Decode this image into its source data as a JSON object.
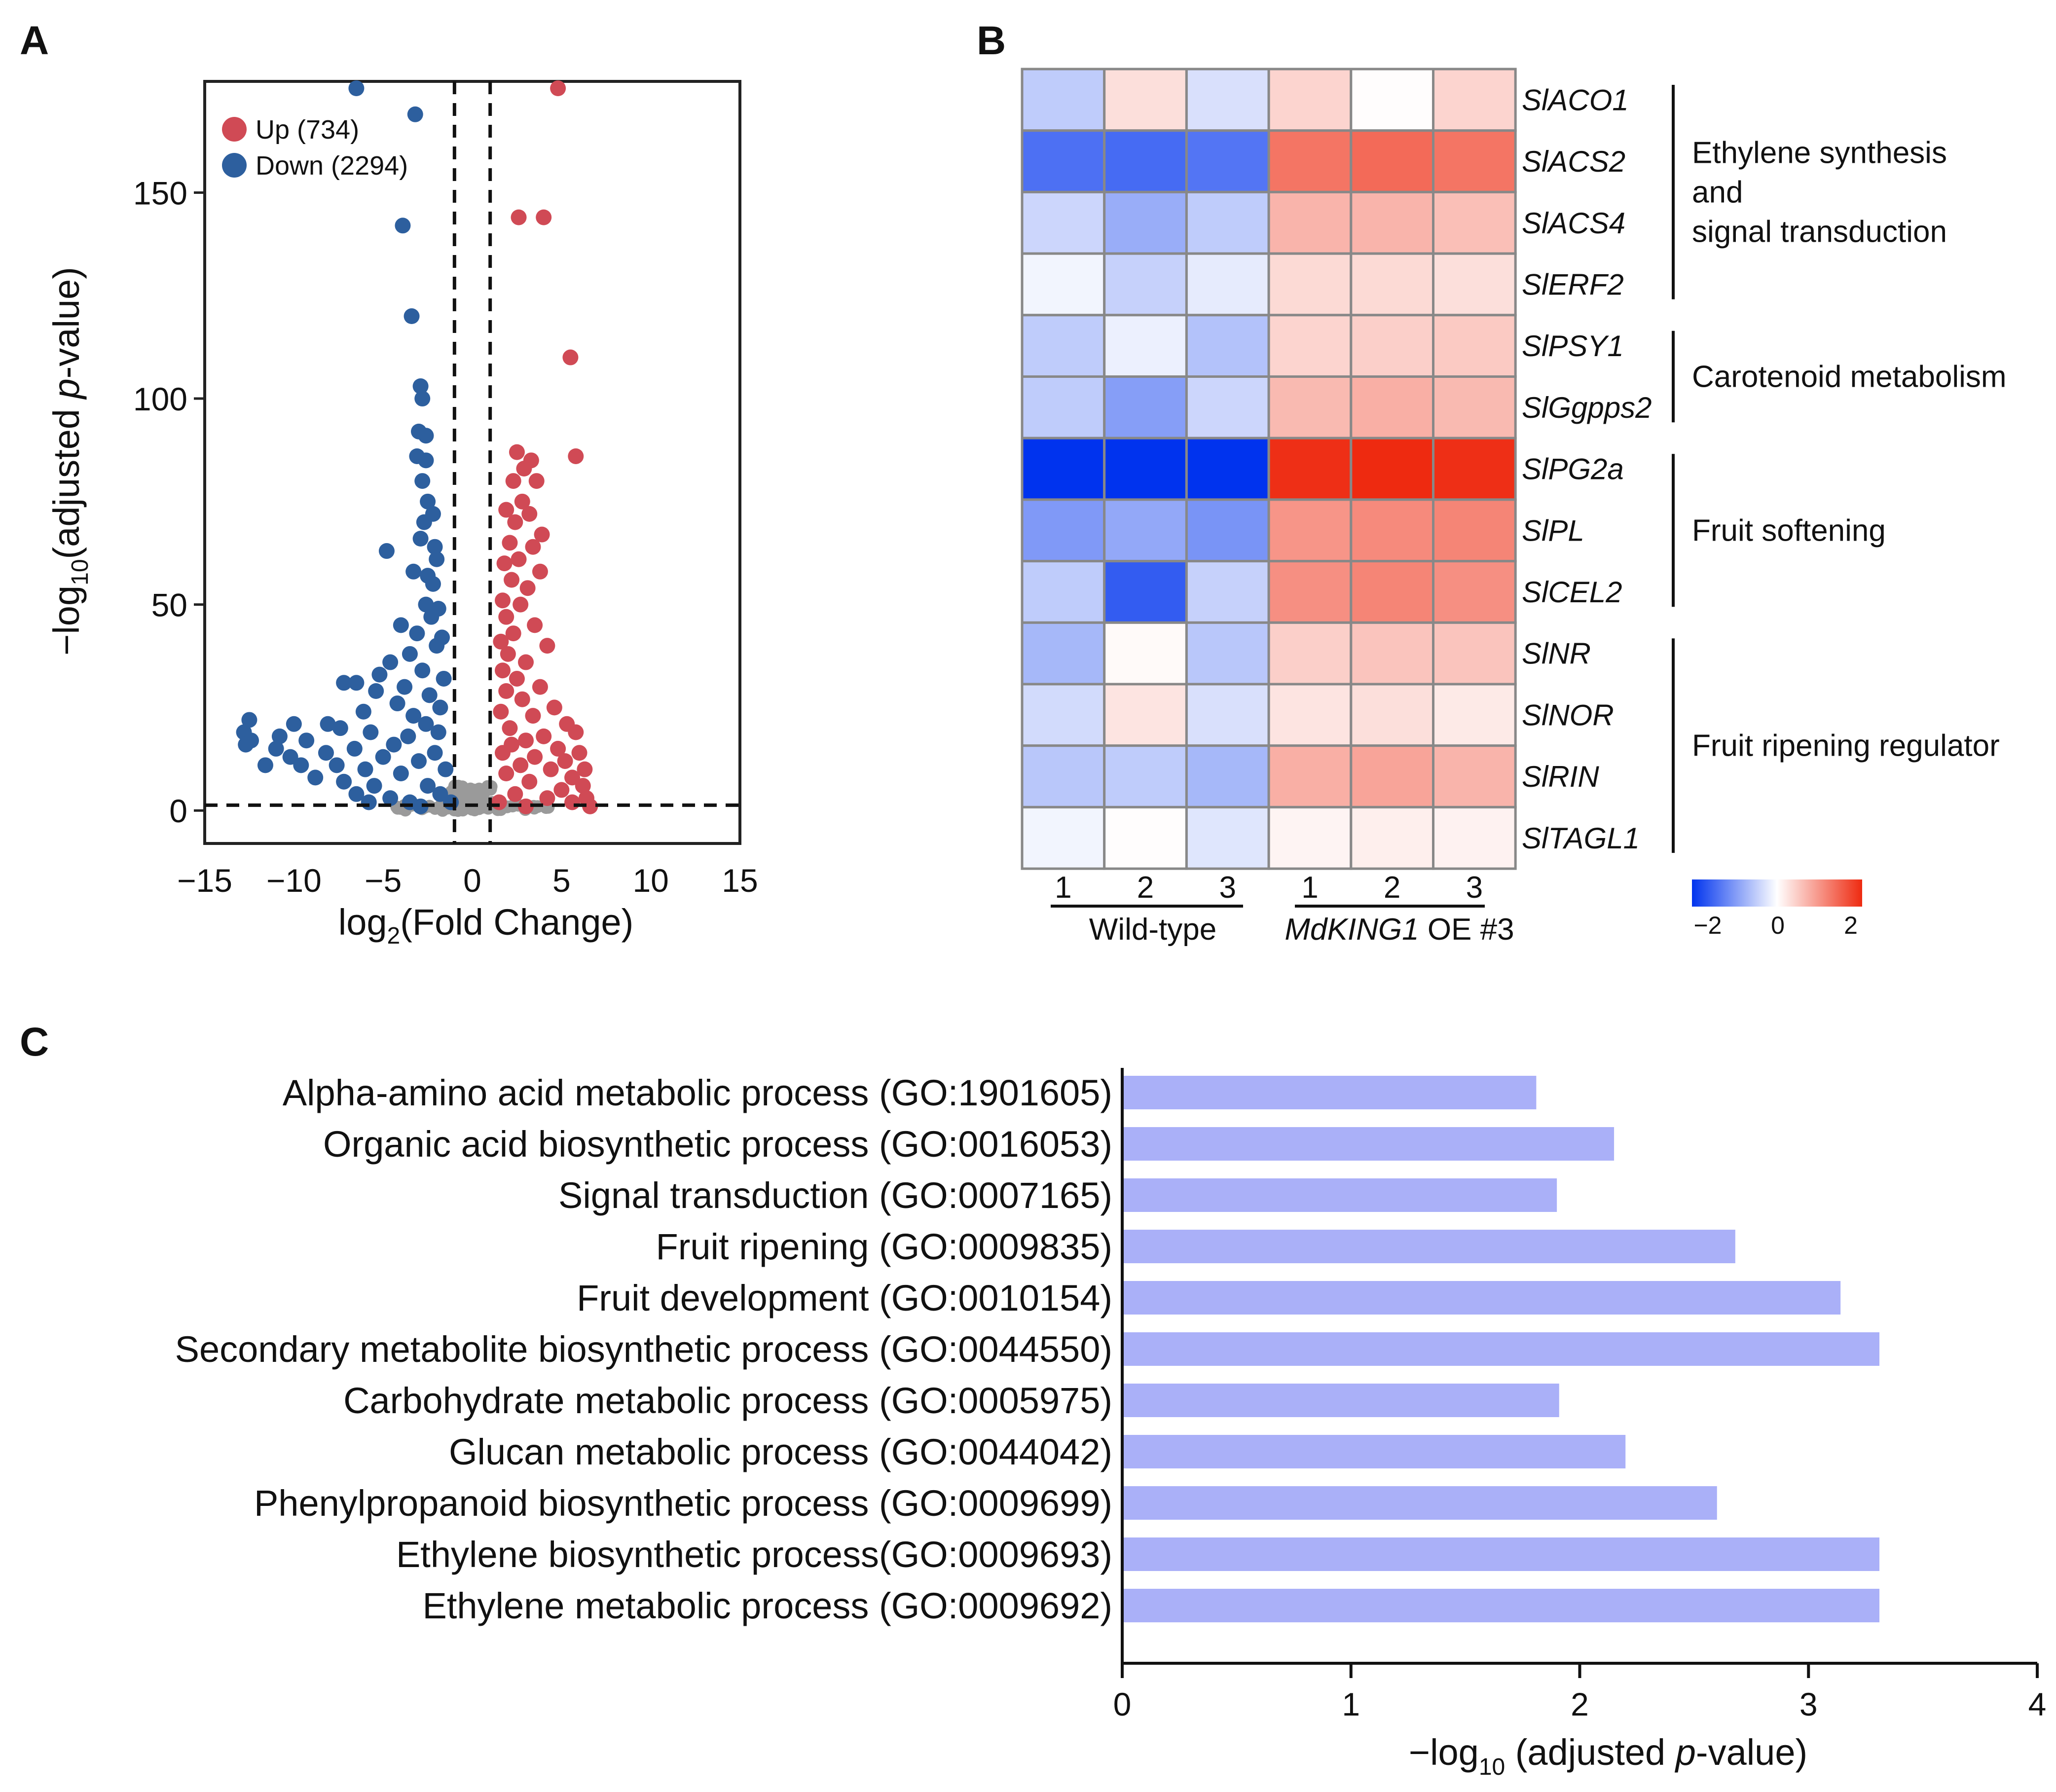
{
  "chart_data": [
    {
      "panel": "A",
      "type": "scatter",
      "title": "",
      "xlabel": "log2(Fold Change)",
      "ylabel": "−log10(adjusted p-value)",
      "xlim": [
        -15,
        15
      ],
      "ylim": [
        -8,
        177
      ],
      "xticks": [
        "−15",
        "−10",
        "−5",
        "0",
        "5",
        "10",
        "15"
      ],
      "yticks": [
        "0",
        "50",
        "100",
        "150"
      ],
      "thresholds": {
        "log2fc": [
          -1,
          1
        ],
        "neglog10p": 1.3
      },
      "legend": [
        {
          "label": "Up (734)",
          "color": "#d04a55"
        },
        {
          "label": "Down (2294)",
          "color": "#2d5f9e"
        }
      ],
      "series": [
        {
          "name": "Down",
          "color": "#2d5f9e",
          "points": [
            [
              -6.5,
              177
            ],
            [
              -3.2,
              169
            ],
            [
              -3.9,
              142
            ],
            [
              -3.4,
              120
            ],
            [
              -2.9,
              103
            ],
            [
              -2.8,
              100
            ],
            [
              -3.0,
              92
            ],
            [
              -2.6,
              91
            ],
            [
              -3.1,
              86
            ],
            [
              -2.6,
              85
            ],
            [
              -2.8,
              80
            ],
            [
              -2.5,
              75
            ],
            [
              -2.2,
              72
            ],
            [
              -2.7,
              70
            ],
            [
              -2.9,
              66
            ],
            [
              -2.1,
              64
            ],
            [
              -4.8,
              63
            ],
            [
              -2.0,
              61
            ],
            [
              -3.3,
              58
            ],
            [
              -2.5,
              57
            ],
            [
              -2.2,
              55
            ],
            [
              -2.6,
              50
            ],
            [
              -1.9,
              49
            ],
            [
              -2.3,
              47
            ],
            [
              -4.0,
              45
            ],
            [
              -3.1,
              43
            ],
            [
              -1.7,
              42
            ],
            [
              -2.0,
              40
            ],
            [
              -3.5,
              38
            ],
            [
              -4.6,
              36
            ],
            [
              -2.8,
              34
            ],
            [
              -5.2,
              33
            ],
            [
              -1.6,
              32
            ],
            [
              -3.8,
              30
            ],
            [
              -6.5,
              31
            ],
            [
              -7.2,
              31
            ],
            [
              -5.4,
              29
            ],
            [
              -2.4,
              28
            ],
            [
              -4.2,
              26
            ],
            [
              -1.8,
              25
            ],
            [
              -6.1,
              24
            ],
            [
              -3.3,
              23
            ],
            [
              -8.1,
              21
            ],
            [
              -2.6,
              21
            ],
            [
              -7.4,
              20
            ],
            [
              -10.0,
              21
            ],
            [
              -5.7,
              19
            ],
            [
              -12.5,
              22
            ],
            [
              -12.8,
              19
            ],
            [
              -1.9,
              19
            ],
            [
              -10.8,
              18
            ],
            [
              -3.6,
              18
            ],
            [
              -9.3,
              17
            ],
            [
              -12.4,
              17
            ],
            [
              -4.4,
              16
            ],
            [
              -11.0,
              15
            ],
            [
              -12.7,
              16
            ],
            [
              -6.6,
              15
            ],
            [
              -8.2,
              14
            ],
            [
              -10.2,
              13
            ],
            [
              -2.1,
              14
            ],
            [
              -11.6,
              11
            ],
            [
              -5.0,
              13
            ],
            [
              -9.6,
              11
            ],
            [
              -7.6,
              11
            ],
            [
              -3.0,
              12
            ],
            [
              -8.8,
              8
            ],
            [
              -6.0,
              10
            ],
            [
              -4.0,
              9
            ],
            [
              -7.2,
              7
            ],
            [
              -1.5,
              10
            ],
            [
              -5.5,
              6
            ],
            [
              -6.5,
              4
            ],
            [
              -2.5,
              6
            ],
            [
              -4.6,
              3
            ],
            [
              -3.5,
              2
            ],
            [
              -1.8,
              4
            ],
            [
              -5.8,
              2
            ],
            [
              -2.9,
              1
            ],
            [
              -1.2,
              2
            ]
          ]
        },
        {
          "name": "Up",
          "color": "#d04a55",
          "points": [
            [
              4.8,
              177
            ],
            [
              2.6,
              144
            ],
            [
              4.0,
              144
            ],
            [
              5.5,
              110
            ],
            [
              2.5,
              87
            ],
            [
              3.3,
              85
            ],
            [
              5.8,
              86
            ],
            [
              2.9,
              83
            ],
            [
              2.3,
              80
            ],
            [
              3.6,
              80
            ],
            [
              2.8,
              75
            ],
            [
              1.9,
              73
            ],
            [
              3.2,
              72
            ],
            [
              2.4,
              70
            ],
            [
              3.9,
              67
            ],
            [
              2.1,
              65
            ],
            [
              3.4,
              64
            ],
            [
              2.6,
              61
            ],
            [
              1.8,
              60
            ],
            [
              3.8,
              58
            ],
            [
              2.2,
              56
            ],
            [
              3.1,
              54
            ],
            [
              1.7,
              51
            ],
            [
              2.7,
              50
            ],
            [
              1.9,
              47
            ],
            [
              3.5,
              45
            ],
            [
              2.3,
              43
            ],
            [
              1.6,
              41
            ],
            [
              4.2,
              40
            ],
            [
              2.0,
              38
            ],
            [
              3.0,
              36
            ],
            [
              1.7,
              34
            ],
            [
              2.5,
              32
            ],
            [
              3.8,
              30
            ],
            [
              1.9,
              29
            ],
            [
              2.8,
              27
            ],
            [
              4.6,
              25
            ],
            [
              1.6,
              24
            ],
            [
              3.4,
              23
            ],
            [
              5.3,
              21
            ],
            [
              2.1,
              20
            ],
            [
              5.8,
              19
            ],
            [
              4.0,
              18
            ],
            [
              3.0,
              17
            ],
            [
              2.2,
              16
            ],
            [
              4.8,
              15
            ],
            [
              6.0,
              14
            ],
            [
              1.7,
              14
            ],
            [
              3.5,
              13
            ],
            [
              5.2,
              12
            ],
            [
              2.7,
              11
            ],
            [
              6.3,
              10
            ],
            [
              4.4,
              10
            ],
            [
              1.9,
              9
            ],
            [
              5.6,
              8
            ],
            [
              3.2,
              7
            ],
            [
              6.2,
              6
            ],
            [
              5.0,
              5
            ],
            [
              2.4,
              4
            ],
            [
              6.4,
              3
            ],
            [
              4.2,
              3
            ],
            [
              1.5,
              2
            ],
            [
              5.6,
              2
            ],
            [
              3.0,
              1
            ],
            [
              6.6,
              1
            ]
          ]
        }
      ]
    },
    {
      "panel": "B",
      "type": "heatmap",
      "row_labels": [
        "SlACO1",
        "SlACS2",
        "SlACS4",
        "SlERF2",
        "SlPSY1",
        "SlGgpps2",
        "SlPG2a",
        "SlPL",
        "SlCEL2",
        "SlNR",
        "SlNOR",
        "SlRIN",
        "SlTAGL1"
      ],
      "column_labels": [
        "1",
        "2",
        "3",
        "1",
        "2",
        "3"
      ],
      "column_groups": [
        {
          "label": "Wild-type",
          "italic_part": "",
          "plain_part": "Wild-type"
        },
        {
          "label": "MdKING1 OE #3",
          "italic_part": "MdKING1",
          "plain_part": " OE #3"
        }
      ],
      "values": [
        [
          -0.5,
          0.3,
          -0.3,
          0.4,
          0.02,
          0.4
        ],
        [
          -1.4,
          -1.45,
          -1.35,
          1.3,
          1.4,
          1.3
        ],
        [
          -0.4,
          -0.8,
          -0.5,
          0.7,
          0.7,
          0.6
        ],
        [
          -0.1,
          -0.45,
          -0.2,
          0.35,
          0.35,
          0.3
        ],
        [
          -0.5,
          -0.15,
          -0.6,
          0.4,
          0.45,
          0.5
        ],
        [
          -0.5,
          -0.95,
          -0.4,
          0.65,
          0.75,
          0.65
        ],
        [
          -2.0,
          -2.0,
          -2.0,
          1.95,
          2.0,
          1.95
        ],
        [
          -1.0,
          -0.85,
          -1.05,
          1.0,
          1.1,
          1.15
        ],
        [
          -0.5,
          -1.6,
          -0.45,
          1.05,
          1.15,
          1.05
        ],
        [
          -0.7,
          0.05,
          -0.55,
          0.45,
          0.55,
          0.55
        ],
        [
          -0.35,
          0.25,
          -0.3,
          0.25,
          0.3,
          0.2
        ],
        [
          -0.55,
          -0.5,
          -0.7,
          0.75,
          0.85,
          0.7
        ],
        [
          -0.1,
          0.02,
          -0.25,
          0.1,
          0.15,
          0.12
        ]
      ],
      "row_groups": [
        {
          "rows": [
            0,
            3
          ],
          "lines": [
            "Ethylene synthesis",
            "and",
            "signal transduction"
          ]
        },
        {
          "rows": [
            4,
            5
          ],
          "lines": [
            "Carotenoid metabolism"
          ]
        },
        {
          "rows": [
            6,
            8
          ],
          "lines": [
            "Fruit softening"
          ]
        },
        {
          "rows": [
            9,
            12
          ],
          "lines": [
            "Fruit ripening regulator"
          ]
        }
      ],
      "colorbar": {
        "min": -2,
        "max": 2,
        "ticks": [
          "−2",
          "0",
          "2"
        ],
        "low_color": "#0033ee",
        "mid_color": "#ffffff",
        "high_color": "#ee2a10"
      }
    },
    {
      "panel": "C",
      "type": "bar",
      "orientation": "horizontal",
      "color": "#aab0f8",
      "categories": [
        "Alpha-amino acid metabolic process (GO:1901605)",
        "Organic acid biosynthetic process (GO:0016053)",
        "Signal transduction (GO:0007165)",
        "Fruit ripening (GO:0009835)",
        "Fruit development (GO:0010154)",
        "Secondary metabolite biosynthetic process (GO:0044550)",
        "Carbohydrate metabolic process (GO:0005975)",
        "Glucan metabolic process (GO:0044042)",
        "Phenylpropanoid biosynthetic process (GO:0009699)",
        "Ethylene biosynthetic process(GO:0009693)",
        "Ethylene metabolic process (GO:0009692)"
      ],
      "values": [
        1.81,
        2.15,
        1.9,
        2.68,
        3.14,
        3.31,
        1.91,
        2.2,
        2.6,
        3.31,
        3.31
      ],
      "xlim": [
        0,
        4
      ],
      "xticks": [
        "0",
        "1",
        "2",
        "3",
        "4"
      ],
      "xlabel": "−log10 (adjusted p-value)"
    }
  ],
  "axis_text": {
    "a_ylabel_prefix": "−log",
    "a_ylabel_sub": "10",
    "a_ylabel_open": "(adjusted ",
    "a_ylabel_italic": "p",
    "a_ylabel_suffix": "-value)",
    "a_xlabel_prefix": "log",
    "a_xlabel_sub": "2",
    "a_xlabel_suffix": "(Fold Change)",
    "c_xlabel_prefix": "−log",
    "c_xlabel_sub": "10",
    "c_xlabel_open": " (adjusted ",
    "c_xlabel_italic": "p",
    "c_xlabel_suffix": "-value)"
  },
  "panel_labels": {
    "a": "A",
    "b": "B",
    "c": "C"
  },
  "colors": {
    "insignificant": "#9a9a9a",
    "grid_line": "#888888"
  }
}
